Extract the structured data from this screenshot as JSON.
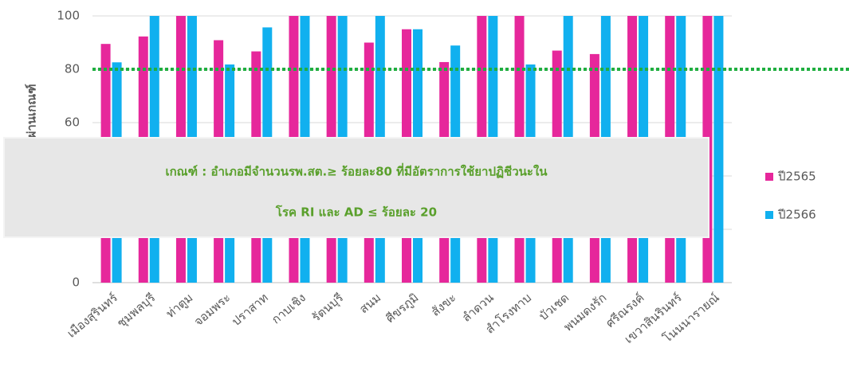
{
  "chart_data": {
    "type": "bar",
    "y_label": "ร้อยละรพ.สต.ที่ผ่านเกณฑ์",
    "categories": [
      "เมืองสุรินทร์",
      "ชุมพลบุรี",
      "ท่าตูม",
      "จอมพระ",
      "ปราสาท",
      "กาบเชิง",
      "รัตนบุรี",
      "สนม",
      "ศีขรภูมิ",
      "สังขะ",
      "ลำดวน",
      "สำโรงทาบ",
      "บัวเชด",
      "พนมดงรัก",
      "ศรีณรงค์",
      "เขวาสินรินทร์",
      "โนนนารายณ์"
    ],
    "series": [
      {
        "name": "ปี2565",
        "color": "#e6279b",
        "values": [
          89.5,
          92.3,
          100,
          90.9,
          86.7,
          100,
          100,
          90,
          95,
          82.7,
          100,
          100,
          87,
          85.7,
          100,
          100,
          100
        ]
      },
      {
        "name": "ปี2566",
        "color": "#11b0ef",
        "values": [
          82.6,
          100,
          100,
          81.8,
          95.7,
          100,
          100,
          100,
          95,
          88.9,
          100,
          81.8,
          100,
          100,
          100,
          100,
          100
        ]
      }
    ],
    "ylim": [
      0,
      100
    ],
    "yticks": [
      0,
      20,
      40,
      60,
      80,
      100
    ],
    "grid": true,
    "threshold": 80,
    "threshold_color": "#1fae3f",
    "annotation": [
      "เกณฑ์ : อำเภอมีจำนวนรพ.สต.≥ ร้อยละ80 ที่มีอัตราการใช้ยาปฏิชีวนะใน",
      "โรค RI และ AD ≤ ร้อยละ 20"
    ],
    "legend": "right"
  }
}
